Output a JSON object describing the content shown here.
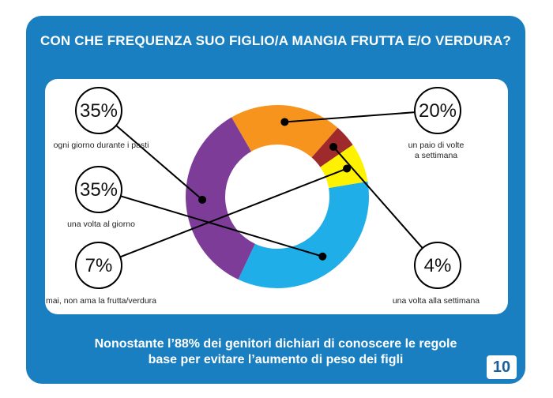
{
  "title": "CON CHE FREQUENZA SUO FIGLIO/A MANGIA FRUTTA E/O VERDURA?",
  "footer": {
    "line1": "Nonostante l’88% dei genitori dichiari di conoscere le regole",
    "line2": "base per evitare l’aumento di peso dei figli"
  },
  "page_number": "10",
  "chart_data": {
    "type": "pie",
    "donut": true,
    "title": "CON CHE FREQUENZA SUO FIGLIO/A MANGIA FRUTTA E/O VERDURA?",
    "slices": [
      {
        "label": "un paio di volte a settimana",
        "label_lines": [
          "un paio di volte",
          "a settimana"
        ],
        "value": 20,
        "value_label": "20%",
        "color": "#f7941d"
      },
      {
        "label": "una volta alla settimana",
        "label_lines": [
          "una volta alla settimana"
        ],
        "value": 4,
        "value_label": "4%",
        "color": "#9e2a2b"
      },
      {
        "label": "mai, non ama la frutta/verdura",
        "label_lines": [
          "mai, non ama la frutta/verdura"
        ],
        "value": 7,
        "value_label": "7%",
        "color": "#fff200"
      },
      {
        "label": "una volta al giorno",
        "label_lines": [
          "una volta al giorno"
        ],
        "value": 35,
        "value_label": "35%",
        "color": "#1faee8"
      },
      {
        "label": "ogni giorno durante i pasti",
        "label_lines": [
          "ogni giorno durante i pasti"
        ],
        "value": 35,
        "value_label": "35%",
        "color": "#7d3c98"
      }
    ]
  }
}
